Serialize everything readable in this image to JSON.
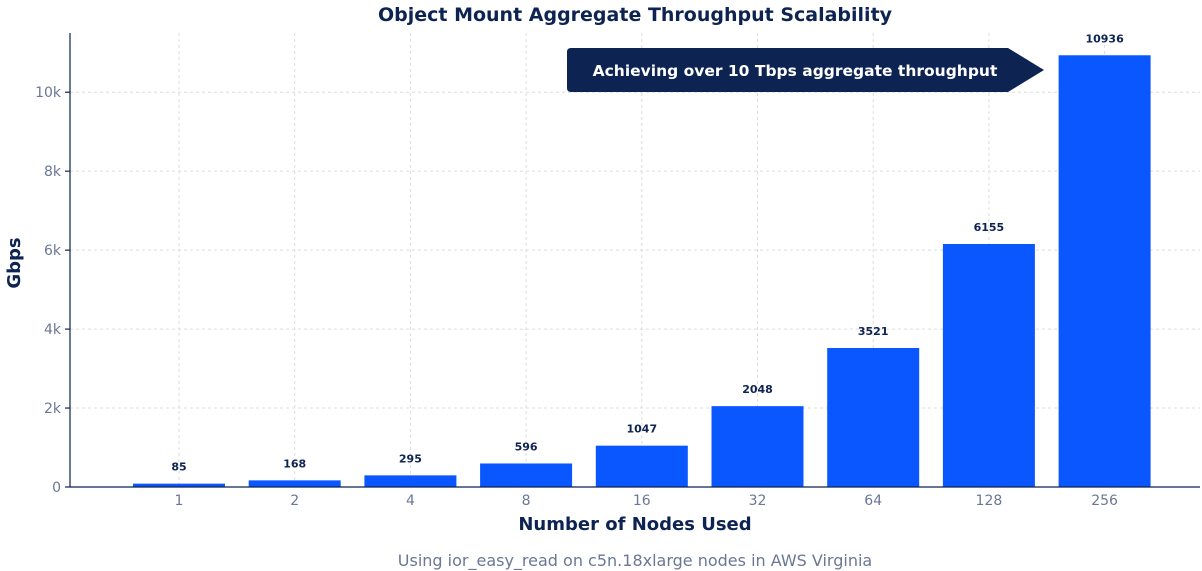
{
  "chart_data": {
    "type": "bar",
    "title": "Object Mount Aggregate Throughput Scalability",
    "xlabel": "Number of Nodes Used",
    "ylabel": "Gbps",
    "subtitle": "Using ior_easy_read on c5n.18xlarge nodes in AWS Virginia",
    "categories": [
      "1",
      "2",
      "4",
      "8",
      "16",
      "32",
      "64",
      "128",
      "256"
    ],
    "values": [
      85,
      168,
      295,
      596,
      1047,
      2048,
      3521,
      6155,
      10936
    ],
    "data_labels": [
      "85",
      "168",
      "295",
      "596",
      "1047",
      "2048",
      "3521",
      "6155",
      "10936"
    ],
    "ylim": [
      0,
      11500
    ],
    "yticks": [
      0,
      2000,
      4000,
      6000,
      8000,
      10000
    ],
    "ytick_labels": [
      "0",
      "2k",
      "4k",
      "6k",
      "8k",
      "10k"
    ],
    "grid": true,
    "annotation": "Achieving over 10 Tbps aggregate throughput",
    "colors": {
      "bar": "#0a57ff",
      "text": "#0d2352",
      "callout": "#0d2352",
      "tick": "#6b7794"
    }
  }
}
